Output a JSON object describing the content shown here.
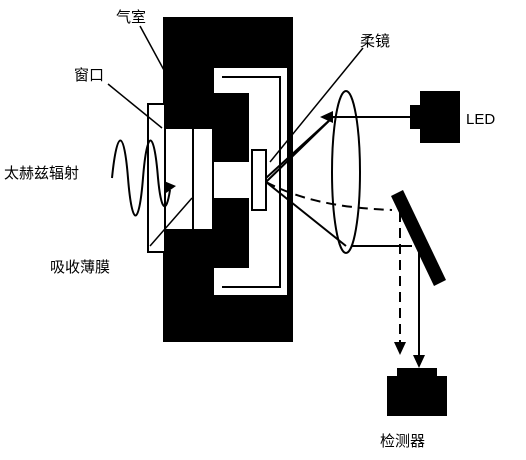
{
  "labels": {
    "gas_chamber": "气室",
    "window": "窗口",
    "flexible_mirror": "柔镜",
    "terahertz_radiation": "太赫兹辐射",
    "absorbing_membrane": "吸收薄膜",
    "led": "LED",
    "detector": "检测器"
  },
  "colors": {
    "ink": "#000000",
    "paper": "#ffffff"
  }
}
